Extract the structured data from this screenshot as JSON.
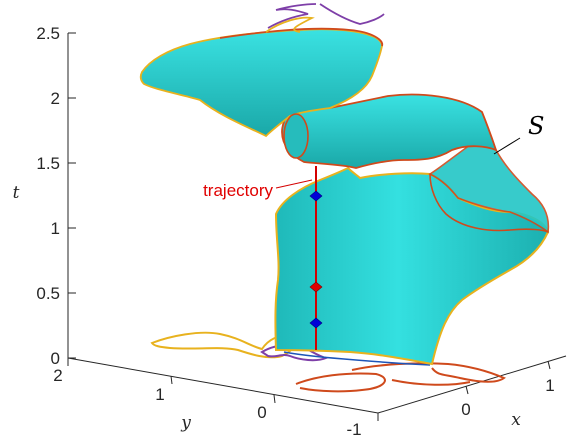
{
  "chart_data": {
    "type": "3d-surface",
    "axes": {
      "t": {
        "label": "t",
        "ticks": [
          "0",
          "0.5",
          "1",
          "1.5",
          "2",
          "2.5"
        ],
        "range": [
          0,
          2.5
        ]
      },
      "y": {
        "label": "y",
        "ticks": [
          "2",
          "1",
          "0",
          "-1"
        ]
      },
      "x": {
        "label": "x",
        "ticks": [
          "0",
          "1"
        ]
      }
    },
    "surface_label": "S",
    "annotation": "trajectory",
    "colors": {
      "surface": "#26cfcf",
      "surface_edge": "#d9582b",
      "curve_orange": "#e8b21e",
      "curve_purple": "#7e3fa8",
      "curve_red": "#cf4a1c",
      "trajectory": "#d40000",
      "marker_blue": "#0000d8",
      "marker_red": "#e00000"
    },
    "markers": [
      {
        "color": "blue",
        "t": 1.26
      },
      {
        "color": "red",
        "t": 0.55
      },
      {
        "color": "blue",
        "t": 0.28
      }
    ]
  }
}
